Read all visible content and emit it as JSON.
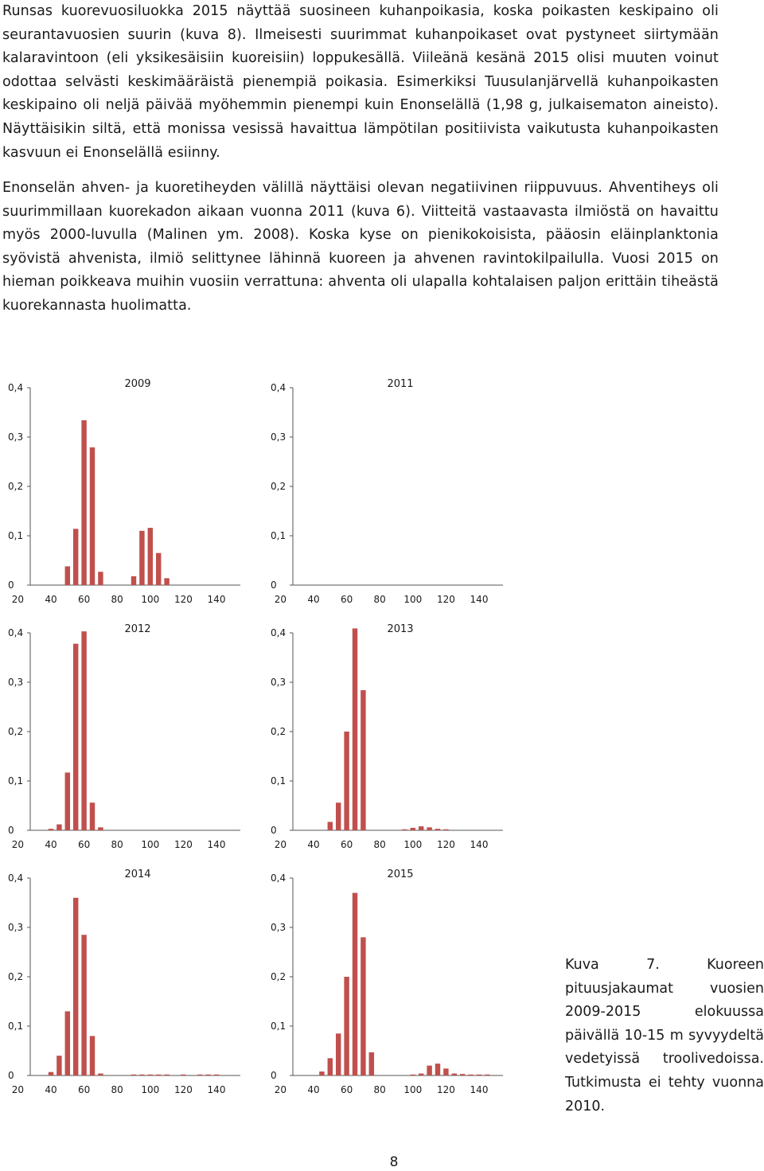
{
  "paragraphs": [
    "Runsas kuorevuosiluokka 2015 näyttää suosineen kuhanpoikasia, koska poikasten keskipaino oli seurantavuosien suurin (kuva 8). Ilmeisesti suurimmat kuhanpoikaset ovat pystyneet siirtymään kalaravintoon (eli yksikesäisiin kuoreisiin) loppukesällä. Viileänä kesänä 2015 olisi muuten voinut odottaa selvästi keskimääräistä pienempiä poikasia. Esimerkiksi Tuusulanjärvellä kuhanpoikasten keskipaino oli neljä päivää myöhemmin pienempi kuin Enonselällä (1,98 g, julkaisematon aineisto). Näyttäisikin siltä, että monissa vesissä havaittua lämpötilan positiivista vaikutusta kuhanpoikasten kasvuun ei Enonselällä esiinny.",
    "Enonselän ahven- ja kuoretiheyden välillä näyttäisi olevan negatiivinen riippuvuus. Ahventiheys oli suurimmillaan kuorekadon aikaan vuonna 2011 (kuva 6). Viitteitä vastaavasta ilmiöstä on havaittu myös 2000-luvulla (Malinen ym. 2008). Koska kyse on pienikokoisista, pääosin eläinplanktonia syövistä ahvenista, ilmiö selittynee lähinnä kuoreen ja ahvenen ravintokilpailulla. Vuosi 2015 on hieman poikkeava muihin vuosiin verrattuna: ahventa oli ulapalla kohtalaisen paljon erittäin tiheästä kuorekannasta huolimatta."
  ],
  "caption": "Kuva 7. Kuoreen pituusjakaumat vuosien 2009-2015 elokuussa päivällä 10-15 m syvyydeltä vedetyissä troolivedoissa. Tutkimusta ei tehty vuonna 2010.",
  "page_number": "8",
  "bar_color": "#c0504d",
  "chart_data": [
    {
      "type": "bar",
      "title": "2009",
      "x": [
        30,
        35,
        40,
        45,
        50,
        55,
        60,
        65,
        70,
        75,
        80,
        85,
        90,
        95,
        100,
        105,
        110,
        115,
        120,
        125,
        130,
        135,
        140,
        145
      ],
      "values": [
        0,
        0,
        0,
        0,
        0.038,
        0.114,
        0.334,
        0.279,
        0.027,
        0,
        0,
        0,
        0.018,
        0.11,
        0.116,
        0.065,
        0.014,
        0,
        0,
        0,
        0,
        0,
        0,
        0
      ],
      "xticks": [
        "20",
        "40",
        "60",
        "80",
        "100",
        "120",
        "140"
      ],
      "yticks": [
        "0",
        "0,1",
        "0,2",
        "0,3",
        "0,4"
      ],
      "ylim": [
        0,
        0.4
      ]
    },
    {
      "type": "bar",
      "title": "2011",
      "x": [
        30,
        35,
        40,
        45,
        50,
        55,
        60,
        65,
        70,
        75,
        80,
        85,
        90,
        95,
        100,
        105,
        110,
        115,
        120,
        125,
        130,
        135,
        140,
        145
      ],
      "values": [
        0,
        0,
        0,
        0,
        0,
        0,
        0,
        0,
        0,
        0,
        0,
        0,
        0,
        0,
        0,
        0,
        0,
        0,
        0,
        0,
        0,
        0,
        0,
        0
      ],
      "xticks": [
        "20",
        "40",
        "60",
        "80",
        "100",
        "120",
        "140"
      ],
      "yticks": [
        "0",
        "0,1",
        "0,2",
        "0,3",
        "0,4"
      ],
      "ylim": [
        0,
        0.4
      ]
    },
    {
      "type": "bar",
      "title": "2012",
      "x": [
        30,
        35,
        40,
        45,
        50,
        55,
        60,
        65,
        70,
        75,
        80,
        85,
        90,
        95,
        100,
        105,
        110,
        115,
        120,
        125,
        130,
        135,
        140,
        145
      ],
      "values": [
        0,
        0,
        0.003,
        0.012,
        0.117,
        0.378,
        0.403,
        0.056,
        0.006,
        0,
        0,
        0,
        0,
        0,
        0,
        0,
        0,
        0,
        0,
        0,
        0,
        0,
        0,
        0
      ],
      "xticks": [
        "20",
        "40",
        "60",
        "80",
        "100",
        "120",
        "140"
      ],
      "yticks": [
        "0",
        "0,1",
        "0,2",
        "0,3",
        "0,4"
      ],
      "ylim": [
        0,
        0.4
      ]
    },
    {
      "type": "bar",
      "title": "2013",
      "x": [
        30,
        35,
        40,
        45,
        50,
        55,
        60,
        65,
        70,
        75,
        80,
        85,
        90,
        95,
        100,
        105,
        110,
        115,
        120,
        125,
        130,
        135,
        140,
        145
      ],
      "values": [
        0,
        0,
        0,
        0,
        0.017,
        0.056,
        0.2,
        0.409,
        0.284,
        0,
        0,
        0,
        0,
        0.002,
        0.005,
        0.008,
        0.006,
        0.003,
        0.002,
        0,
        0,
        0,
        0,
        0
      ],
      "xticks": [
        "20",
        "40",
        "60",
        "80",
        "100",
        "120",
        "140"
      ],
      "yticks": [
        "0",
        "0,1",
        "0,2",
        "0,3",
        "0,4"
      ],
      "ylim": [
        0,
        0.4
      ]
    },
    {
      "type": "bar",
      "title": "2014",
      "x": [
        30,
        35,
        40,
        45,
        50,
        55,
        60,
        65,
        70,
        75,
        80,
        85,
        90,
        95,
        100,
        105,
        110,
        115,
        120,
        125,
        130,
        135,
        140,
        145
      ],
      "values": [
        0,
        0,
        0.007,
        0.04,
        0.13,
        0.36,
        0.285,
        0.08,
        0.004,
        0,
        0,
        0,
        0.002,
        0.002,
        0.002,
        0.002,
        0.002,
        0,
        0.002,
        0,
        0.002,
        0.002,
        0.002,
        0
      ],
      "xticks": [
        "20",
        "40",
        "60",
        "80",
        "100",
        "120",
        "140"
      ],
      "yticks": [
        "0",
        "0,1",
        "0,2",
        "0,3",
        "0,4"
      ],
      "ylim": [
        0,
        0.4
      ]
    },
    {
      "type": "bar",
      "title": "2015",
      "x": [
        30,
        35,
        40,
        45,
        50,
        55,
        60,
        65,
        70,
        75,
        80,
        85,
        90,
        95,
        100,
        105,
        110,
        115,
        120,
        125,
        130,
        135,
        140,
        145
      ],
      "values": [
        0,
        0,
        0,
        0.008,
        0.035,
        0.085,
        0.2,
        0.37,
        0.28,
        0.047,
        0,
        0,
        0,
        0,
        0.002,
        0.004,
        0.02,
        0.024,
        0.014,
        0.004,
        0.003,
        0.002,
        0.002,
        0.002
      ],
      "xticks": [
        "20",
        "40",
        "60",
        "80",
        "100",
        "120",
        "140"
      ],
      "yticks": [
        "0",
        "0,1",
        "0,2",
        "0,3",
        "0,4"
      ],
      "ylim": [
        0,
        0.4
      ]
    }
  ]
}
